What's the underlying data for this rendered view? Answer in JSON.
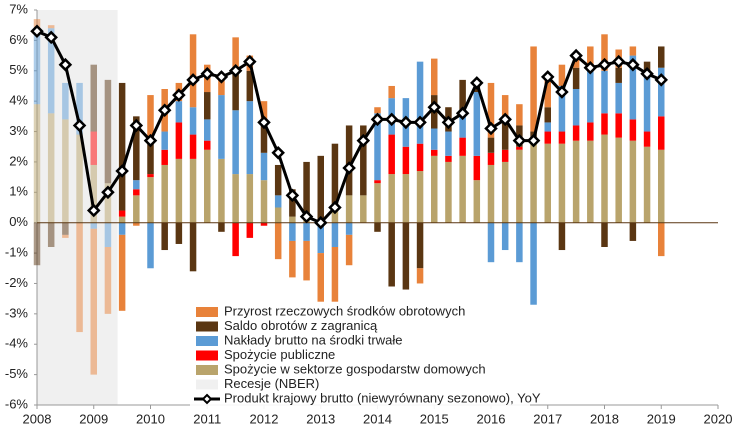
{
  "chart_data": {
    "type": "stacked-bar-line",
    "x": [
      2008,
      2008.25,
      2008.5,
      2008.75,
      2009,
      2009.25,
      2009.5,
      2009.75,
      2010,
      2010.25,
      2010.5,
      2010.75,
      2011,
      2011.25,
      2011.5,
      2011.75,
      2012,
      2012.25,
      2012.5,
      2012.75,
      2013,
      2013.25,
      2013.5,
      2013.75,
      2014,
      2014.25,
      2014.5,
      2014.75,
      2015,
      2015.25,
      2015.5,
      2015.75,
      2016,
      2016.25,
      2016.5,
      2016.75,
      2017,
      2017.25,
      2017.5,
      2017.75,
      2018,
      2018.25,
      2018.5,
      2018.75,
      2019
    ],
    "xlim": [
      2008,
      2020
    ],
    "xticks": [
      2008,
      2009,
      2010,
      2011,
      2012,
      2013,
      2014,
      2015,
      2016,
      2017,
      2018,
      2019,
      2020
    ],
    "ylim": [
      -6,
      7
    ],
    "yticks": [
      {
        "value": -6,
        "label": "-6%"
      },
      {
        "value": -5,
        "label": "-5%"
      },
      {
        "value": -4,
        "label": "-4%"
      },
      {
        "value": -3,
        "label": "-3%"
      },
      {
        "value": -2,
        "label": "-2%"
      },
      {
        "value": -1,
        "label": "-1%"
      },
      {
        "value": 0,
        "label": "0%"
      },
      {
        "value": 1,
        "label": "1%"
      },
      {
        "value": 2,
        "label": "2%"
      },
      {
        "value": 3,
        "label": "3%"
      },
      {
        "value": 4,
        "label": "4%"
      },
      {
        "value": 5,
        "label": "5%"
      },
      {
        "value": 6,
        "label": "6%"
      },
      {
        "value": 7,
        "label": "7%"
      }
    ],
    "recession": {
      "name": "Recesje (NBER)",
      "color": "#f0f0f0",
      "xlim": [
        2008,
        2009.42
      ]
    },
    "series": [
      {
        "name": "Przyrost rzeczowych środków obrotowych",
        "kind": "bar",
        "color": "#e8823a",
        "values": [
          0.3,
          0.1,
          -0.1,
          -3.6,
          -4.8,
          -2.2,
          -2.5,
          -0.1,
          1.4,
          1.4,
          0.6,
          2.4,
          0.9,
          0.5,
          1.2,
          0.5,
          0.7,
          -1.2,
          -1.2,
          -1.3,
          -1.6,
          -1.8,
          -1.0,
          0,
          0.2,
          0.4,
          0,
          -0.5,
          1.2,
          0,
          0,
          0,
          1.8,
          0.8,
          0.7,
          2.8,
          1.0,
          0.7,
          0.4,
          0.6,
          1.2,
          0.6,
          0.3,
          0,
          -1.1
        ]
      },
      {
        "name": "Saldo obrotów z zagranicą",
        "kind": "bar",
        "color": "#5a3612",
        "values": [
          -1.4,
          -0.8,
          -0.4,
          0,
          2.2,
          3.4,
          4.2,
          2.1,
          1.2,
          -0.9,
          -0.7,
          -1.6,
          0.9,
          -0.3,
          1.2,
          1.0,
          1.0,
          1.0,
          0.9,
          1.9,
          2.1,
          2.0,
          2.3,
          2.3,
          -0.3,
          -2.1,
          -2.2,
          -1.5,
          1.1,
          0.8,
          1.2,
          0.3,
          0.5,
          1.0,
          0.7,
          0.3,
          0.5,
          -0.9,
          0.7,
          0.2,
          -0.8,
          0.5,
          -0.6,
          0.5,
          0.7
        ]
      },
      {
        "name": "Nakłady brutto na środki trwałe",
        "kind": "bar",
        "color": "#5b9bd5",
        "values": [
          2.5,
          2.8,
          1.2,
          1.7,
          -0.2,
          -0.8,
          -0.4,
          0.3,
          -1.5,
          0.6,
          0.7,
          0.9,
          0.7,
          2.1,
          2.1,
          2.4,
          0.9,
          0.4,
          -0.6,
          -0.6,
          -1.0,
          -0.8,
          -0.4,
          0,
          2.2,
          1.2,
          1.6,
          2.7,
          0.7,
          0.8,
          0.7,
          2.1,
          -1.3,
          -0.9,
          -1.3,
          -2.7,
          0.3,
          1.5,
          1.2,
          1.7,
          1.4,
          1.0,
          2.1,
          1.8,
          1.6
        ]
      },
      {
        "name": "Spożycie publiczne",
        "kind": "bar",
        "color": "#ff0000",
        "values": [
          0,
          0,
          0,
          0,
          1.1,
          0,
          0.2,
          0.2,
          0.1,
          0.5,
          1.2,
          0.8,
          0.3,
          0,
          -1.1,
          -0.5,
          -0.1,
          0,
          0,
          0,
          0,
          0.1,
          0,
          0,
          0.1,
          1.3,
          0.9,
          0.9,
          0.2,
          0.2,
          0.6,
          0.8,
          0.4,
          0.4,
          0.1,
          0.1,
          0.4,
          0.4,
          0.5,
          0.6,
          0.7,
          0.8,
          0.7,
          0.5,
          1.1
        ]
      },
      {
        "name": "Spożycie w sektorze gospodarstw domowych",
        "kind": "bar",
        "color": "#b9a46c",
        "values": [
          3.9,
          3.6,
          3.4,
          2.9,
          1.9,
          1.3,
          0.2,
          0.9,
          1.5,
          1.9,
          2.1,
          2.1,
          2.4,
          2.1,
          1.6,
          1.6,
          1.4,
          0.5,
          0.2,
          0.1,
          0.1,
          0.5,
          0.9,
          0.9,
          1.3,
          1.6,
          1.6,
          1.7,
          2.2,
          2.0,
          2.2,
          1.4,
          1.9,
          2.0,
          2.4,
          2.6,
          2.6,
          2.6,
          2.7,
          2.7,
          2.9,
          2.8,
          2.7,
          2.5,
          2.4
        ]
      },
      {
        "name": "Produkt krajowy brutto (niewyrównany sezonowo), YoY",
        "kind": "line",
        "color": "#000000",
        "values": [
          6.3,
          6.1,
          5.2,
          3.2,
          0.4,
          1.0,
          1.7,
          3.2,
          2.7,
          3.7,
          4.2,
          4.7,
          4.9,
          4.8,
          5.0,
          5.3,
          3.3,
          2.3,
          0.9,
          0.2,
          0.0,
          0.5,
          1.8,
          2.7,
          3.4,
          3.4,
          3.3,
          3.3,
          3.8,
          3.3,
          3.6,
          4.6,
          3.1,
          3.4,
          2.7,
          2.7,
          4.8,
          4.3,
          5.5,
          5.1,
          5.2,
          5.3,
          5.2,
          4.9,
          4.7
        ]
      }
    ]
  }
}
